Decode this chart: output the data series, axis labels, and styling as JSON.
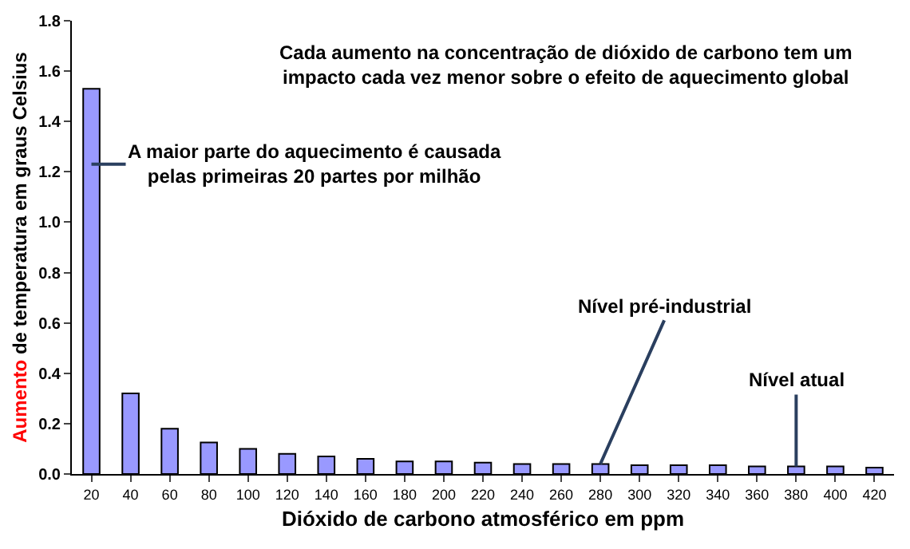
{
  "chart_data": {
    "type": "bar",
    "title": "Cada aumento na concentração de dióxido de carbono tem um\nimpacto cada vez menor sobre o efeito de aquecimento global",
    "xlabel": "Dióxido de carbono atmosférico em ppm",
    "ylabel": "Aumento de temperatura em graus Celsius",
    "categories": [
      "20",
      "40",
      "60",
      "80",
      "100",
      "120",
      "140",
      "160",
      "180",
      "200",
      "220",
      "240",
      "260",
      "280",
      "300",
      "320",
      "340",
      "360",
      "380",
      "400",
      "420"
    ],
    "values": [
      1.53,
      0.32,
      0.18,
      0.125,
      0.1,
      0.08,
      0.07,
      0.06,
      0.05,
      0.05,
      0.045,
      0.04,
      0.04,
      0.04,
      0.035,
      0.035,
      0.035,
      0.03,
      0.03,
      0.03,
      0.025
    ],
    "color": "#9999ff",
    "ylim": [
      0,
      1.8
    ],
    "yticks": [
      {
        "value": 0,
        "label": "0.0"
      },
      0.2,
      0.4,
      0.6,
      0.8,
      {
        "value": 1,
        "label": "1.0"
      },
      1.2,
      1.4,
      1.6,
      1.8
    ],
    "legend": false,
    "annotations": [
      {
        "text": "A maior parte do aquecimento é causada\npelas primeiras 20 partes por milhão",
        "x": "20",
        "y": 1.23
      },
      {
        "text": "Nível pré-industrial",
        "x": "280",
        "y": 0.04
      },
      {
        "text": "Nível atual",
        "x": "380",
        "y": 0.03
      }
    ]
  }
}
